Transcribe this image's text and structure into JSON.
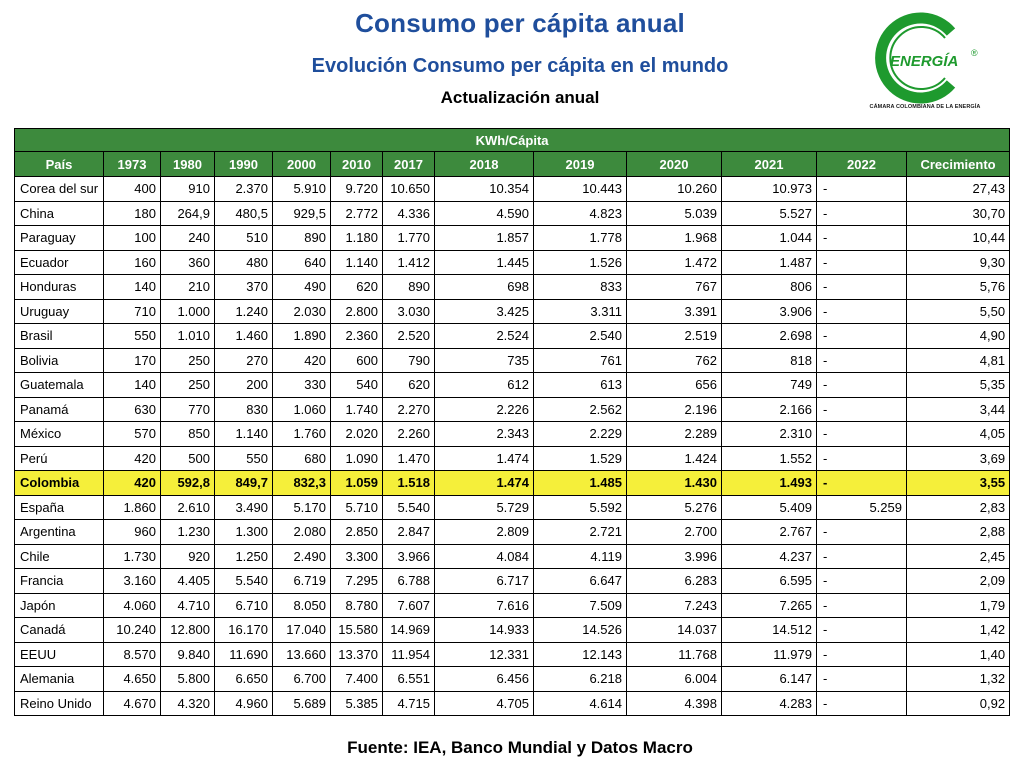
{
  "header": {
    "title": "Consumo per cápita anual",
    "subtitle": "Evolución Consumo per cápita en el mundo",
    "update": "Actualización anual"
  },
  "logo": {
    "letter": "C",
    "word": "ENERGÍA",
    "registered": "®",
    "tagline": "CÁMARA COLOMBIANA DE LA ENERGÍA",
    "color": "#1e9a2e"
  },
  "table": {
    "unit_band": "KWh/Cápita",
    "columns": [
      "País",
      "1973",
      "1980",
      "1990",
      "2000",
      "2010",
      "2017",
      "2018",
      "2019",
      "2020",
      "2021",
      "2022",
      "Crecimiento"
    ],
    "highlight_color": "#f5ef3a",
    "header_color": "#3d8a3d",
    "rows": [
      {
        "pais": "Corea del sur",
        "v": [
          "400",
          "910",
          "2.370",
          "5.910",
          "9.720",
          "10.650",
          "10.354",
          "10.443",
          "10.260",
          "10.973",
          "-",
          "27,43"
        ]
      },
      {
        "pais": "China",
        "v": [
          "180",
          "264,9",
          "480,5",
          "929,5",
          "2.772",
          "4.336",
          "4.590",
          "4.823",
          "5.039",
          "5.527",
          "-",
          "30,70"
        ]
      },
      {
        "pais": "Paraguay",
        "v": [
          "100",
          "240",
          "510",
          "890",
          "1.180",
          "1.770",
          "1.857",
          "1.778",
          "1.968",
          "1.044",
          "-",
          "10,44"
        ]
      },
      {
        "pais": "Ecuador",
        "v": [
          "160",
          "360",
          "480",
          "640",
          "1.140",
          "1.412",
          "1.445",
          "1.526",
          "1.472",
          "1.487",
          "-",
          "9,30"
        ]
      },
      {
        "pais": "Honduras",
        "v": [
          "140",
          "210",
          "370",
          "490",
          "620",
          "890",
          "698",
          "833",
          "767",
          "806",
          "-",
          "5,76"
        ]
      },
      {
        "pais": "Uruguay",
        "v": [
          "710",
          "1.000",
          "1.240",
          "2.030",
          "2.800",
          "3.030",
          "3.425",
          "3.311",
          "3.391",
          "3.906",
          "-",
          "5,50"
        ]
      },
      {
        "pais": "Brasil",
        "v": [
          "550",
          "1.010",
          "1.460",
          "1.890",
          "2.360",
          "2.520",
          "2.524",
          "2.540",
          "2.519",
          "2.698",
          "-",
          "4,90"
        ]
      },
      {
        "pais": "Bolivia",
        "v": [
          "170",
          "250",
          "270",
          "420",
          "600",
          "790",
          "735",
          "761",
          "762",
          "818",
          "-",
          "4,81"
        ]
      },
      {
        "pais": "Guatemala",
        "v": [
          "140",
          "250",
          "200",
          "330",
          "540",
          "620",
          "612",
          "613",
          "656",
          "749",
          "-",
          "5,35"
        ]
      },
      {
        "pais": "Panamá",
        "v": [
          "630",
          "770",
          "830",
          "1.060",
          "1.740",
          "2.270",
          "2.226",
          "2.562",
          "2.196",
          "2.166",
          "-",
          "3,44"
        ]
      },
      {
        "pais": "México",
        "v": [
          "570",
          "850",
          "1.140",
          "1.760",
          "2.020",
          "2.260",
          "2.343",
          "2.229",
          "2.289",
          "2.310",
          "-",
          "4,05"
        ]
      },
      {
        "pais": "Perú",
        "v": [
          "420",
          "500",
          "550",
          "680",
          "1.090",
          "1.470",
          "1.474",
          "1.529",
          "1.424",
          "1.552",
          "-",
          "3,69"
        ]
      },
      {
        "pais": "Colombia",
        "v": [
          "420",
          "592,8",
          "849,7",
          "832,3",
          "1.059",
          "1.518",
          "1.474",
          "1.485",
          "1.430",
          "1.493",
          "-",
          "3,55"
        ],
        "highlight": true
      },
      {
        "pais": "España",
        "v": [
          "1.860",
          "2.610",
          "3.490",
          "5.170",
          "5.710",
          "5.540",
          "5.729",
          "5.592",
          "5.276",
          "5.409",
          "5.259",
          "2,83"
        ]
      },
      {
        "pais": "Argentina",
        "v": [
          "960",
          "1.230",
          "1.300",
          "2.080",
          "2.850",
          "2.847",
          "2.809",
          "2.721",
          "2.700",
          "2.767",
          "-",
          "2,88"
        ]
      },
      {
        "pais": "Chile",
        "v": [
          "1.730",
          "920",
          "1.250",
          "2.490",
          "3.300",
          "3.966",
          "4.084",
          "4.119",
          "3.996",
          "4.237",
          "-",
          "2,45"
        ]
      },
      {
        "pais": "Francia",
        "v": [
          "3.160",
          "4.405",
          "5.540",
          "6.719",
          "7.295",
          "6.788",
          "6.717",
          "6.647",
          "6.283",
          "6.595",
          "-",
          "2,09"
        ]
      },
      {
        "pais": "Japón",
        "v": [
          "4.060",
          "4.710",
          "6.710",
          "8.050",
          "8.780",
          "7.607",
          "7.616",
          "7.509",
          "7.243",
          "7.265",
          "-",
          "1,79"
        ]
      },
      {
        "pais": "Canadá",
        "v": [
          "10.240",
          "12.800",
          "16.170",
          "17.040",
          "15.580",
          "14.969",
          "14.933",
          "14.526",
          "14.037",
          "14.512",
          "-",
          "1,42"
        ]
      },
      {
        "pais": "EEUU",
        "v": [
          "8.570",
          "9.840",
          "11.690",
          "13.660",
          "13.370",
          "11.954",
          "12.331",
          "12.143",
          "11.768",
          "11.979",
          "-",
          "1,40"
        ]
      },
      {
        "pais": "Alemania",
        "v": [
          "4.650",
          "5.800",
          "6.650",
          "6.700",
          "7.400",
          "6.551",
          "6.456",
          "6.218",
          "6.004",
          "6.147",
          "-",
          "1,32"
        ]
      },
      {
        "pais": "Reino Unido",
        "v": [
          "4.670",
          "4.320",
          "4.960",
          "5.689",
          "5.385",
          "4.715",
          "4.705",
          "4.614",
          "4.398",
          "4.283",
          "-",
          "0,92"
        ]
      }
    ]
  },
  "footer": {
    "source": "Fuente: IEA, Banco Mundial y Datos Macro"
  }
}
